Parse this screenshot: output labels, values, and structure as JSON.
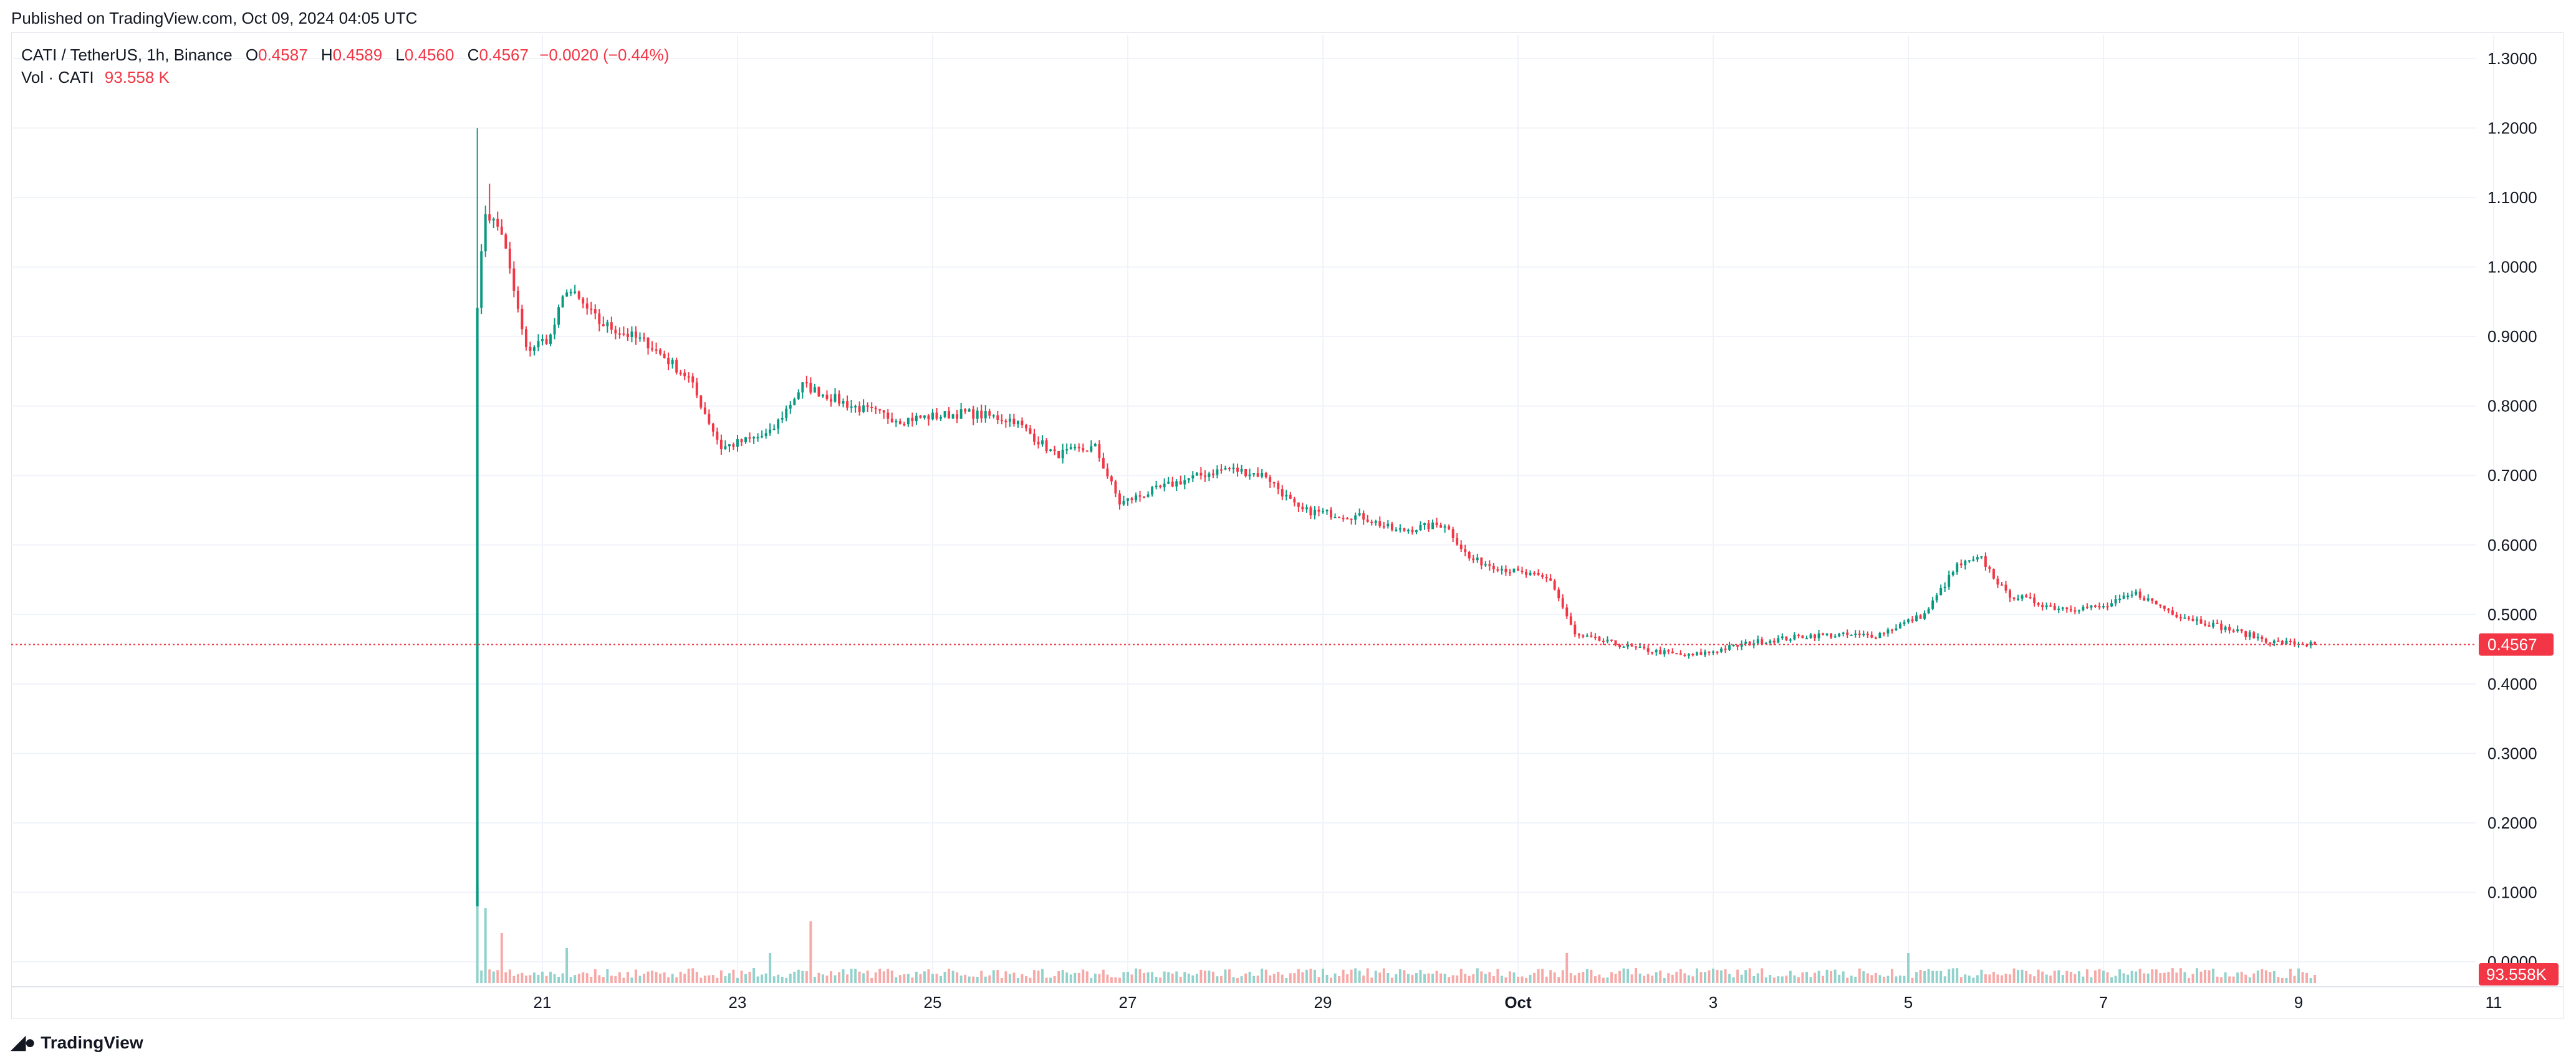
{
  "header": {
    "published": "Published on TradingView.com, Oct 09, 2024 04:05 UTC"
  },
  "legend": {
    "symbol": "CATI / TetherUS, 1h, Binance",
    "o_label": "O",
    "o": "0.4587",
    "h_label": "H",
    "h": "0.4589",
    "l_label": "L",
    "l": "0.4560",
    "c_label": "C",
    "c": "0.4567",
    "change": "−0.0020 (−0.44%)",
    "vol_label": "Vol · CATI",
    "vol": "93.558 K"
  },
  "price_badge": "0.4567",
  "volume_badge": "93.558K",
  "footer": {
    "brand": "TradingView"
  },
  "colors": {
    "up": "#089981",
    "down": "#f23645",
    "up_vol": "#92d2cc",
    "down_vol": "#f7a9a7",
    "grid": "#f0f3fa",
    "text": "#131722"
  },
  "chart_data": {
    "type": "candlestick",
    "title": "CATI / TetherUS, 1h, Binance",
    "ylim": [
      0,
      1.35
    ],
    "y_ticks": [
      "0.0000",
      "0.1000",
      "0.2000",
      "0.3000",
      "0.4000",
      "0.5000",
      "0.6000",
      "0.7000",
      "0.8000",
      "0.9000",
      "1.0000",
      "1.1000",
      "1.2000",
      "1.3000"
    ],
    "x_ticks": [
      "21",
      "23",
      "25",
      "27",
      "29",
      "Oct",
      "3",
      "5",
      "7",
      "9",
      "11"
    ],
    "last_price": 0.4567,
    "close_path": [
      {
        "t": "2024-09-20 08:00",
        "close": 0.95
      },
      {
        "t": "2024-09-20 10:00",
        "close": 1.08
      },
      {
        "t": "2024-09-20 14:00",
        "close": 1.05
      },
      {
        "t": "2024-09-20 20:00",
        "close": 0.88
      },
      {
        "t": "2024-09-21 02:00",
        "close": 0.9
      },
      {
        "t": "2024-09-21 06:00",
        "close": 0.97
      },
      {
        "t": "2024-09-21 14:00",
        "close": 0.92
      },
      {
        "t": "2024-09-22 02:00",
        "close": 0.89
      },
      {
        "t": "2024-09-22 12:00",
        "close": 0.84
      },
      {
        "t": "2024-09-22 20:00",
        "close": 0.74
      },
      {
        "t": "2024-09-23 08:00",
        "close": 0.76
      },
      {
        "t": "2024-09-23 16:00",
        "close": 0.83
      },
      {
        "t": "2024-09-24 04:00",
        "close": 0.8
      },
      {
        "t": "2024-09-24 16:00",
        "close": 0.78
      },
      {
        "t": "2024-09-25 08:00",
        "close": 0.79
      },
      {
        "t": "2024-09-25 20:00",
        "close": 0.78
      },
      {
        "t": "2024-09-26 06:00",
        "close": 0.73
      },
      {
        "t": "2024-09-26 16:00",
        "close": 0.74
      },
      {
        "t": "2024-09-26 22:00",
        "close": 0.66
      },
      {
        "t": "2024-09-27 12:00",
        "close": 0.69
      },
      {
        "t": "2024-09-28 00:00",
        "close": 0.71
      },
      {
        "t": "2024-09-28 10:00",
        "close": 0.7
      },
      {
        "t": "2024-09-28 18:00",
        "close": 0.65
      },
      {
        "t": "2024-09-29 10:00",
        "close": 0.64
      },
      {
        "t": "2024-09-29 18:00",
        "close": 0.62
      },
      {
        "t": "2024-09-30 06:00",
        "close": 0.63
      },
      {
        "t": "2024-09-30 12:00",
        "close": 0.58
      },
      {
        "t": "2024-10-01 00:00",
        "close": 0.56
      },
      {
        "t": "2024-10-01 08:00",
        "close": 0.55
      },
      {
        "t": "2024-10-01 14:00",
        "close": 0.47
      },
      {
        "t": "2024-10-02 06:00",
        "close": 0.45
      },
      {
        "t": "2024-10-02 18:00",
        "close": 0.44
      },
      {
        "t": "2024-10-03 10:00",
        "close": 0.46
      },
      {
        "t": "2024-10-04 00:00",
        "close": 0.47
      },
      {
        "t": "2024-10-04 16:00",
        "close": 0.47
      },
      {
        "t": "2024-10-05 04:00",
        "close": 0.5
      },
      {
        "t": "2024-10-05 12:00",
        "close": 0.57
      },
      {
        "t": "2024-10-05 18:00",
        "close": 0.58
      },
      {
        "t": "2024-10-06 00:00",
        "close": 0.53
      },
      {
        "t": "2024-10-06 12:00",
        "close": 0.51
      },
      {
        "t": "2024-10-07 00:00",
        "close": 0.51
      },
      {
        "t": "2024-10-07 08:00",
        "close": 0.53
      },
      {
        "t": "2024-10-07 18:00",
        "close": 0.5
      },
      {
        "t": "2024-10-08 06:00",
        "close": 0.48
      },
      {
        "t": "2024-10-08 18:00",
        "close": 0.46
      },
      {
        "t": "2024-10-09 04:00",
        "close": 0.4567
      }
    ],
    "volume_spikes": [
      {
        "t": "2024-09-20 08:00",
        "relative": 1.0
      },
      {
        "t": "2024-09-20 10:00",
        "relative": 0.75
      },
      {
        "t": "2024-09-20 14:00",
        "relative": 0.5
      },
      {
        "t": "2024-09-21 06:00",
        "relative": 0.35
      },
      {
        "t": "2024-09-23 08:00",
        "relative": 0.3
      },
      {
        "t": "2024-09-23 18:00",
        "relative": 0.62
      },
      {
        "t": "2024-10-01 12:00",
        "relative": 0.3
      },
      {
        "t": "2024-10-05 00:00",
        "relative": 0.3
      }
    ]
  }
}
